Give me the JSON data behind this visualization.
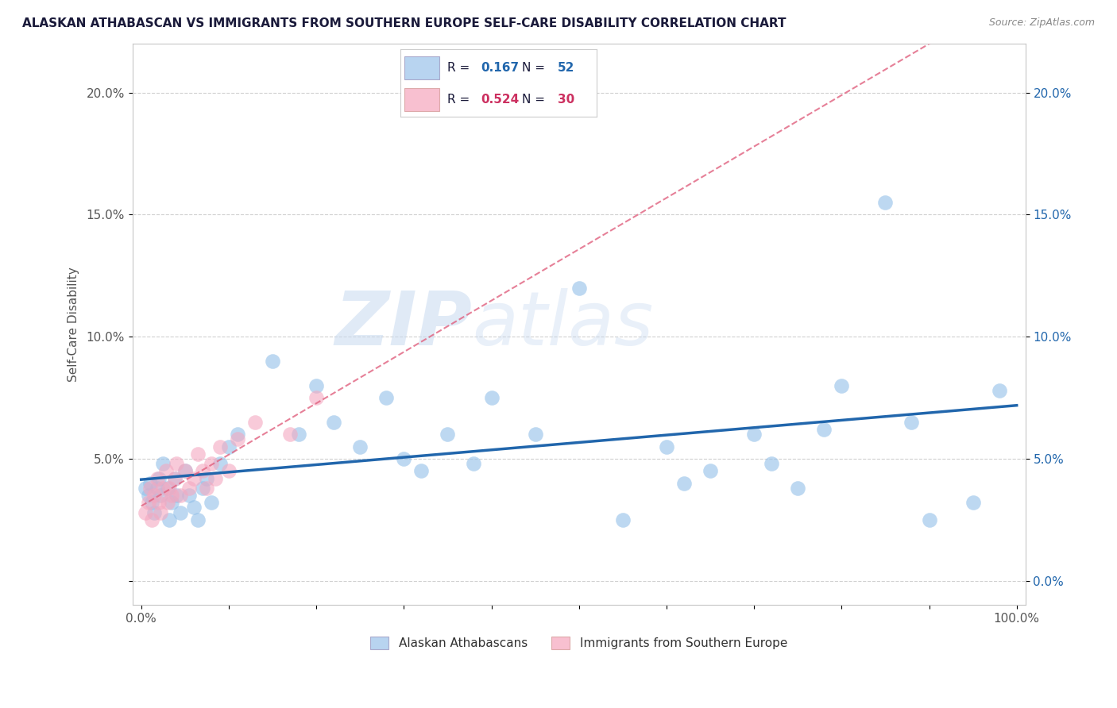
{
  "title": "ALASKAN ATHABASCAN VS IMMIGRANTS FROM SOUTHERN EUROPE SELF-CARE DISABILITY CORRELATION CHART",
  "source_text": "Source: ZipAtlas.com",
  "ylabel": "Self-Care Disability",
  "xlim": [
    -0.01,
    1.01
  ],
  "ylim": [
    -0.01,
    0.22
  ],
  "yticks": [
    0.0,
    0.05,
    0.1,
    0.15,
    0.2
  ],
  "ytick_labels_left": [
    "",
    "5.0%",
    "10.0%",
    "15.0%",
    "20.0%"
  ],
  "ytick_labels_right": [
    "0.0%",
    "5.0%",
    "10.0%",
    "15.0%",
    "20.0%"
  ],
  "xtick_labels": [
    "0.0%",
    "",
    "",
    "",
    "",
    "",
    "",
    "",
    "",
    "",
    "100.0%"
  ],
  "blue_color": "#92bfe8",
  "pink_color": "#f4a8c0",
  "blue_line_color": "#2166ac",
  "pink_line_color": "#e0607e",
  "legend_text_color_blue": "#2166ac",
  "legend_text_color_pink": "#cc3060",
  "legend_text_color_n": "#1a1a6e",
  "watermark_zip": "ZIP",
  "watermark_atlas": "atlas",
  "background_color": "#ffffff",
  "grid_color": "#d0d0d0",
  "blue_x": [
    0.005,
    0.008,
    0.01,
    0.012,
    0.015,
    0.018,
    0.02,
    0.022,
    0.025,
    0.03,
    0.032,
    0.035,
    0.038,
    0.04,
    0.045,
    0.05,
    0.055,
    0.06,
    0.065,
    0.07,
    0.075,
    0.08,
    0.09,
    0.1,
    0.11,
    0.15,
    0.18,
    0.2,
    0.22,
    0.25,
    0.28,
    0.3,
    0.32,
    0.35,
    0.38,
    0.4,
    0.45,
    0.5,
    0.55,
    0.6,
    0.62,
    0.65,
    0.7,
    0.72,
    0.75,
    0.78,
    0.8,
    0.85,
    0.88,
    0.9,
    0.95,
    0.98
  ],
  "blue_y": [
    0.038,
    0.035,
    0.04,
    0.032,
    0.028,
    0.038,
    0.042,
    0.035,
    0.048,
    0.038,
    0.025,
    0.032,
    0.042,
    0.035,
    0.028,
    0.045,
    0.035,
    0.03,
    0.025,
    0.038,
    0.042,
    0.032,
    0.048,
    0.055,
    0.06,
    0.09,
    0.06,
    0.08,
    0.065,
    0.055,
    0.075,
    0.05,
    0.045,
    0.06,
    0.048,
    0.075,
    0.06,
    0.12,
    0.025,
    0.055,
    0.04,
    0.045,
    0.06,
    0.048,
    0.038,
    0.062,
    0.08,
    0.155,
    0.065,
    0.025,
    0.032,
    0.078
  ],
  "pink_x": [
    0.005,
    0.008,
    0.01,
    0.012,
    0.015,
    0.018,
    0.02,
    0.022,
    0.025,
    0.028,
    0.03,
    0.032,
    0.035,
    0.038,
    0.04,
    0.045,
    0.05,
    0.055,
    0.06,
    0.065,
    0.07,
    0.075,
    0.08,
    0.085,
    0.09,
    0.1,
    0.11,
    0.13,
    0.17,
    0.2
  ],
  "pink_y": [
    0.028,
    0.032,
    0.038,
    0.025,
    0.035,
    0.042,
    0.032,
    0.028,
    0.038,
    0.045,
    0.032,
    0.038,
    0.035,
    0.042,
    0.048,
    0.035,
    0.045,
    0.038,
    0.042,
    0.052,
    0.045,
    0.038,
    0.048,
    0.042,
    0.055,
    0.045,
    0.058,
    0.065,
    0.06,
    0.075
  ]
}
